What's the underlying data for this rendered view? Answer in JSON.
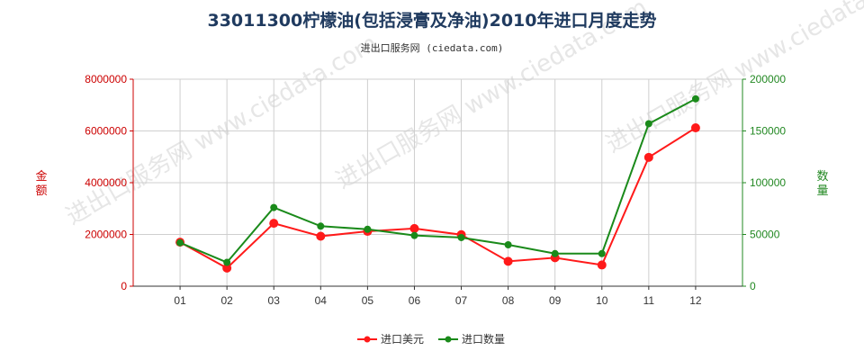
{
  "title": "33011300柠檬油(包括浸膏及净油)2010年进口月度走势",
  "subtitle": "进出口服务网 (ciedata.com)",
  "watermark": "进出口服务网 www.ciedata.com",
  "chart_data": {
    "type": "line",
    "categories": [
      "01",
      "02",
      "03",
      "04",
      "05",
      "06",
      "07",
      "08",
      "09",
      "10",
      "11",
      "12"
    ],
    "y_left": {
      "label": "金额",
      "range": [
        0,
        8000000
      ],
      "ticks": [
        0,
        2000000,
        4000000,
        6000000,
        8000000
      ]
    },
    "y_right": {
      "label": "数量",
      "range": [
        0,
        200000
      ],
      "ticks": [
        0,
        50000,
        100000,
        150000,
        200000
      ]
    },
    "grid": true,
    "legend_position": "bottom-center",
    "series": [
      {
        "name": "进口美元",
        "axis": "left",
        "color": "#ff1a1a",
        "values": [
          1700000,
          700000,
          2430000,
          1930000,
          2120000,
          2230000,
          1990000,
          960000,
          1100000,
          820000,
          4980000,
          6120000
        ]
      },
      {
        "name": "进口数量",
        "axis": "right",
        "color": "#1a8a1a",
        "values": [
          42000,
          23000,
          76000,
          58000,
          55000,
          49000,
          47000,
          40000,
          31500,
          31500,
          157000,
          181000
        ]
      }
    ]
  }
}
